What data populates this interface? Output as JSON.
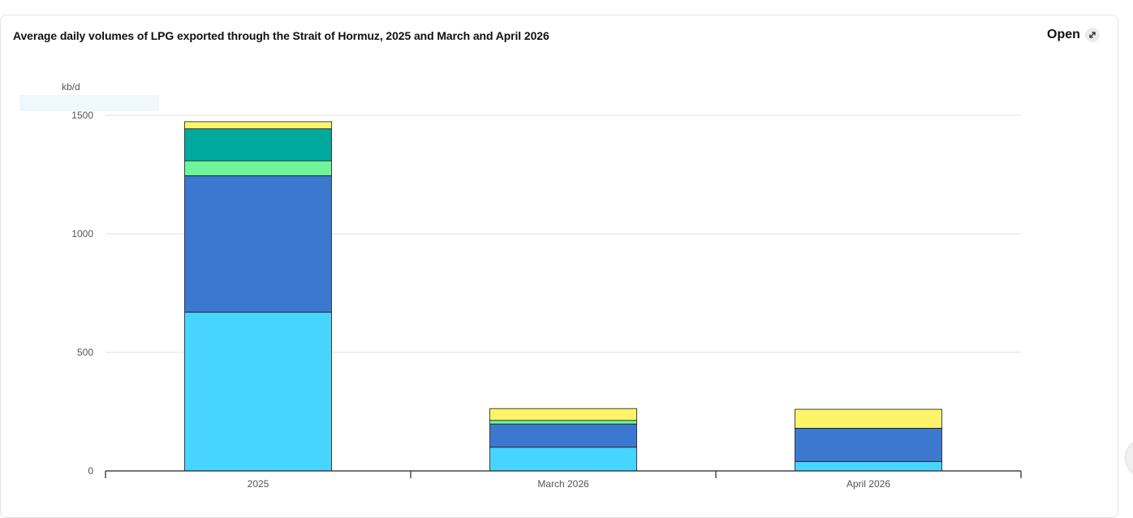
{
  "header": {
    "title": "Average daily volumes of LPG exported through the Strait of Hormuz, 2025 and March and April 2026",
    "open_label": "Open",
    "open_icon": "external-expand-icon"
  },
  "chart_data": {
    "type": "bar",
    "stacked": true,
    "title": "Average daily volumes of LPG exported through the Strait of Hormuz, 2025 and March and April 2026",
    "ylabel": "kb/d",
    "xlabel": "",
    "ylim": [
      0,
      1500
    ],
    "yticks": [
      "0",
      "500",
      "1000",
      "1500"
    ],
    "grid": true,
    "categories": [
      "2025",
      "March 2026",
      "April 2026"
    ],
    "series": [
      {
        "color": "#47d4ff",
        "values": [
          670,
          100,
          40
        ]
      },
      {
        "color": "#3d78d0",
        "values": [
          575,
          98,
          140
        ]
      },
      {
        "color": "#6ef59c",
        "values": [
          63,
          15,
          0
        ]
      },
      {
        "color": "#00a99d",
        "values": [
          135,
          0,
          0
        ]
      },
      {
        "color": "#fdf46a",
        "values": [
          30,
          50,
          80
        ]
      }
    ]
  }
}
